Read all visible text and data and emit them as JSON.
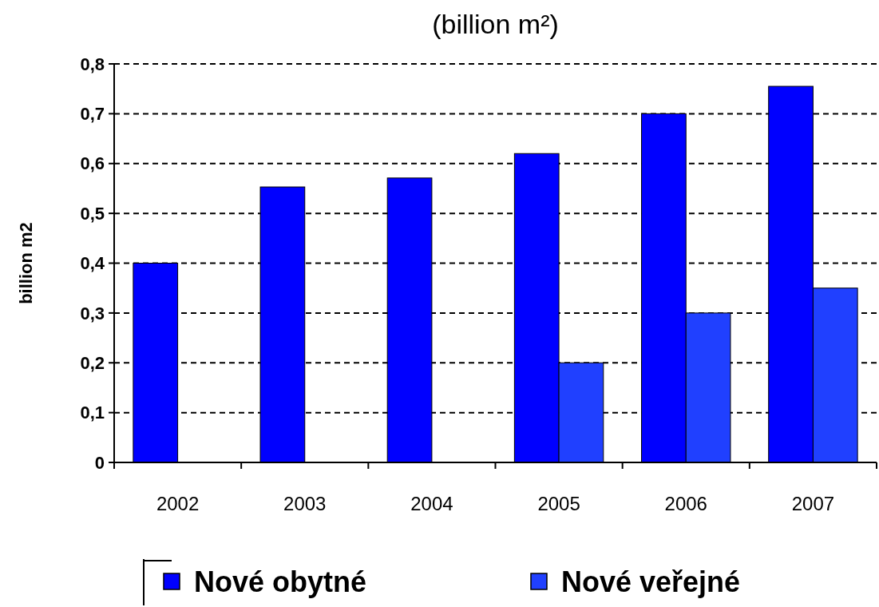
{
  "chart_data": {
    "type": "bar",
    "title": "(billion m²)",
    "ylabel": "billion m2",
    "categories": [
      "2002",
      "2003",
      "2004",
      "2005",
      "2006",
      "2007"
    ],
    "series": [
      {
        "name": "Nové obytné",
        "color": "#0000ff",
        "values": [
          0.4,
          0.553,
          0.571,
          0.62,
          0.7,
          0.755
        ]
      },
      {
        "name": "Nové veřejné",
        "color": "#2040ff",
        "values": [
          null,
          null,
          null,
          0.2,
          0.3,
          0.35
        ]
      }
    ],
    "ylim": [
      0,
      0.8
    ],
    "yticks": [
      {
        "value": 0,
        "label": "0"
      },
      {
        "value": 0.1,
        "label": "0,1"
      },
      {
        "value": 0.2,
        "label": "0,2"
      },
      {
        "value": 0.3,
        "label": "0,3"
      },
      {
        "value": 0.4,
        "label": "0,4"
      },
      {
        "value": 0.5,
        "label": "0,5"
      },
      {
        "value": 0.6,
        "label": "0,6"
      },
      {
        "value": 0.7,
        "label": "0,7"
      },
      {
        "value": 0.8,
        "label": "0,8"
      }
    ],
    "grid": "y",
    "legend": "bottom"
  }
}
